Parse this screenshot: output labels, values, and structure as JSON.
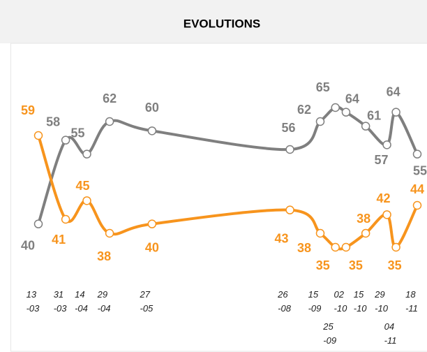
{
  "chart_data": {
    "type": "line",
    "title": "EVOLUTIONS",
    "x": [
      "13\n-03",
      "31\n-03",
      "14\n-04",
      "29\n-04",
      "27\n-05",
      "26\n-08",
      "15\n-09",
      "25\n-09",
      "02\n-10",
      "15\n-10",
      "29\n-10",
      "04\n-11",
      "18\n-11"
    ],
    "series": [
      {
        "color": "#7f7f7f",
        "values": [
          40,
          58,
          55,
          62,
          60,
          56,
          62,
          65,
          64,
          61,
          57,
          64,
          55
        ]
      },
      {
        "color": "#f7941d",
        "values": [
          59,
          41,
          45,
          38,
          40,
          43,
          38,
          35,
          35,
          38,
          42,
          35,
          44
        ]
      }
    ]
  }
}
